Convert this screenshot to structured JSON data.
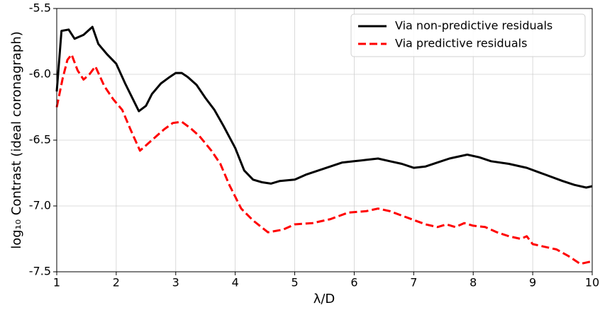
{
  "chart_data": {
    "type": "line",
    "xlabel": "λ/D",
    "ylabel": "log₁₀ Contrast (ideal coronagraph)",
    "xlim": [
      1,
      10
    ],
    "ylim": [
      -7.5,
      -5.5
    ],
    "xticks": [
      1,
      2,
      3,
      4,
      5,
      6,
      7,
      8,
      9,
      10
    ],
    "yticks": [
      {
        "value": -7.5,
        "label": "-7.5"
      },
      {
        "value": -7.0,
        "label": "-7.0"
      },
      {
        "value": -6.5,
        "label": "-6.5"
      },
      {
        "value": -6.0,
        "label": "-6.0"
      },
      {
        "value": -5.5,
        "label": "-5.5"
      }
    ],
    "grid": true,
    "legend": "upper right",
    "series": [
      {
        "name": "Via non-predictive residuals",
        "color": "#000000",
        "dash": "solid",
        "x": [
          1.0,
          1.08,
          1.2,
          1.3,
          1.45,
          1.6,
          1.7,
          1.85,
          2.0,
          2.15,
          2.38,
          2.5,
          2.6,
          2.75,
          2.9,
          3.0,
          3.1,
          3.2,
          3.35,
          3.5,
          3.65,
          3.8,
          4.0,
          4.15,
          4.3,
          4.45,
          4.6,
          4.75,
          5.0,
          5.2,
          5.4,
          5.6,
          5.8,
          6.0,
          6.2,
          6.4,
          6.6,
          6.8,
          7.0,
          7.2,
          7.4,
          7.6,
          7.9,
          8.1,
          8.3,
          8.6,
          8.9,
          9.2,
          9.5,
          9.7,
          9.9,
          10.0
        ],
        "values": [
          -6.13,
          -5.67,
          -5.66,
          -5.73,
          -5.7,
          -5.64,
          -5.77,
          -5.85,
          -5.92,
          -6.07,
          -6.28,
          -6.24,
          -6.15,
          -6.07,
          -6.02,
          -5.99,
          -5.99,
          -6.02,
          -6.08,
          -6.18,
          -6.27,
          -6.39,
          -6.56,
          -6.73,
          -6.8,
          -6.82,
          -6.83,
          -6.81,
          -6.8,
          -6.76,
          -6.73,
          -6.7,
          -6.67,
          -6.66,
          -6.65,
          -6.64,
          -6.66,
          -6.68,
          -6.71,
          -6.7,
          -6.67,
          -6.64,
          -6.61,
          -6.63,
          -6.66,
          -6.68,
          -6.71,
          -6.76,
          -6.81,
          -6.84,
          -6.86,
          -6.85
        ]
      },
      {
        "name": "Via predictive residuals",
        "color": "#ff0000",
        "dash": "dashed",
        "x": [
          1.0,
          1.1,
          1.18,
          1.25,
          1.35,
          1.45,
          1.55,
          1.65,
          1.8,
          1.95,
          2.1,
          2.25,
          2.4,
          2.6,
          2.8,
          2.95,
          3.1,
          3.25,
          3.4,
          3.6,
          3.75,
          3.9,
          4.1,
          4.3,
          4.55,
          4.8,
          5.0,
          5.3,
          5.6,
          5.9,
          6.2,
          6.4,
          6.6,
          6.9,
          7.2,
          7.4,
          7.55,
          7.7,
          7.85,
          8.0,
          8.2,
          8.4,
          8.6,
          8.8,
          8.9,
          9.0,
          9.2,
          9.4,
          9.6,
          9.8,
          10.0
        ],
        "values": [
          -6.25,
          -6.03,
          -5.89,
          -5.85,
          -5.97,
          -6.04,
          -6.0,
          -5.94,
          -6.09,
          -6.19,
          -6.27,
          -6.43,
          -6.58,
          -6.5,
          -6.42,
          -6.37,
          -6.36,
          -6.41,
          -6.47,
          -6.58,
          -6.68,
          -6.84,
          -7.02,
          -7.11,
          -7.2,
          -7.18,
          -7.14,
          -7.13,
          -7.1,
          -7.05,
          -7.04,
          -7.02,
          -7.04,
          -7.09,
          -7.14,
          -7.16,
          -7.14,
          -7.16,
          -7.13,
          -7.15,
          -7.16,
          -7.2,
          -7.23,
          -7.25,
          -7.23,
          -7.29,
          -7.31,
          -7.33,
          -7.38,
          -7.44,
          -7.42
        ]
      }
    ]
  }
}
